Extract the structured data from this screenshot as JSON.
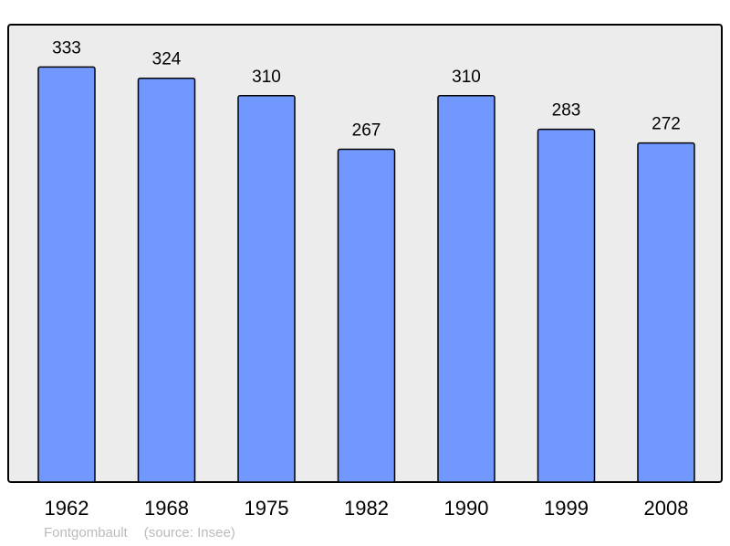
{
  "chart_data": {
    "type": "bar",
    "categories": [
      "1962",
      "1968",
      "1975",
      "1982",
      "1990",
      "1999",
      "2008"
    ],
    "values": [
      333,
      324,
      310,
      267,
      310,
      283,
      272
    ],
    "ylim": [
      0,
      367
    ],
    "grid": false,
    "colors": {
      "bar": "#7098ff",
      "plot_background": "#ececec",
      "frame": "#000000"
    }
  },
  "footer": {
    "place": "Fontgombault",
    "source": "(source: Insee)"
  }
}
